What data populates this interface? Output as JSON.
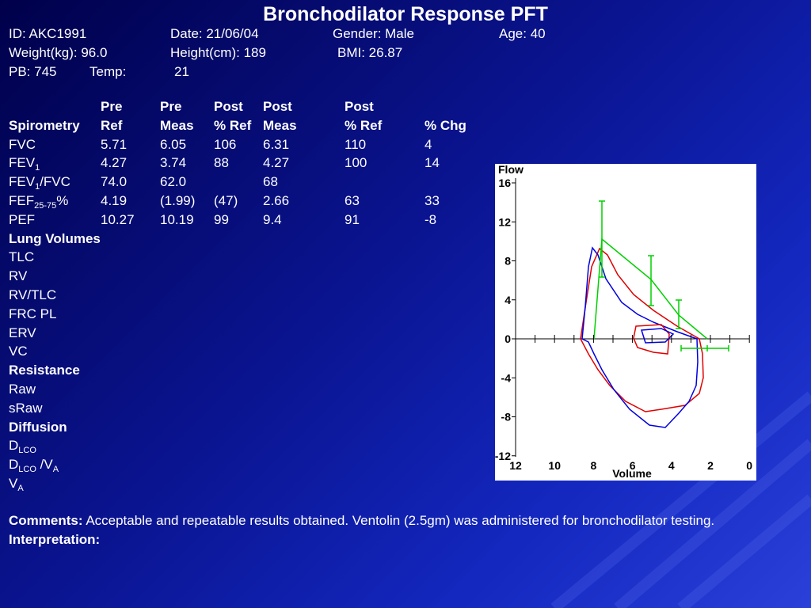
{
  "title": "Bronchodilator Response PFT",
  "patient": [
    [
      "ID: AKC1991",
      "Date: 21/06/04",
      "Gender: Male",
      "Age: 40"
    ],
    [
      "Weight(kg): 96.0",
      "Height(cm): 189",
      "BMI: 26.87"
    ],
    [
      "PB: 745",
      "Temp:",
      "21"
    ]
  ],
  "table": {
    "header_top": [
      "Pre",
      "Pre",
      "Post",
      "Post",
      "Post"
    ],
    "header": [
      "Spirometry",
      "Ref",
      "Meas",
      "% Ref",
      "Meas",
      "% Ref",
      "% Chg"
    ],
    "rows": [
      {
        "label": [
          "FVC"
        ],
        "cells": [
          "5.71",
          "6.05",
          "106",
          "6.31",
          "110",
          "4"
        ]
      },
      {
        "label": [
          "FEV",
          {
            "sub": "1"
          }
        ],
        "cells": [
          "4.27",
          "3.74",
          "88",
          "4.27",
          "100",
          "14"
        ]
      },
      {
        "label": [
          "FEV",
          {
            "sub": "1"
          },
          "/FVC"
        ],
        "cells": [
          "74.0",
          "62.0",
          null,
          "68",
          null,
          null
        ]
      },
      {
        "label": [
          "FEF",
          {
            "sub": "25-75"
          },
          "%"
        ],
        "cells": [
          "4.19",
          "(1.99)",
          "(47)",
          "2.66",
          "63",
          "33"
        ]
      },
      {
        "label": [
          "PEF"
        ],
        "cells": [
          "10.27",
          "10.19",
          "99",
          "9.4",
          "91",
          "-8"
        ]
      },
      {
        "section": "Lung Volumes"
      },
      {
        "label": [
          "TLC"
        ]
      },
      {
        "label": [
          "RV"
        ]
      },
      {
        "label": [
          "RV/TLC"
        ]
      },
      {
        "label": [
          "FRC PL"
        ]
      },
      {
        "label": [
          "ERV"
        ]
      },
      {
        "label": [
          "VC"
        ]
      },
      {
        "section": "Resistance"
      },
      {
        "label": [
          "Raw"
        ]
      },
      {
        "label": [
          "sRaw"
        ]
      },
      {
        "section": "Diffusion"
      },
      {
        "label": [
          "D",
          {
            "sub": "LCO"
          }
        ]
      },
      {
        "label": [
          "D",
          {
            "sub": "LCO"
          },
          " /V",
          {
            "sub": "A"
          }
        ]
      },
      {
        "label": [
          "V",
          {
            "sub": "A"
          }
        ]
      }
    ]
  },
  "graph": {
    "ylabel": "Flow",
    "xlabel": "Volume",
    "yticks": [
      16,
      12,
      8,
      4,
      0,
      -4,
      -8,
      -12
    ],
    "xticks": [
      12,
      10,
      8,
      6,
      4,
      2,
      0
    ]
  },
  "comments": {
    "label": "Comments:",
    "text": "Acceptable and repeatable results obtained. Ventolin (2.5gm) was administered for bronchodilator testing."
  },
  "interpretation": {
    "label": "Interpretation:"
  }
}
